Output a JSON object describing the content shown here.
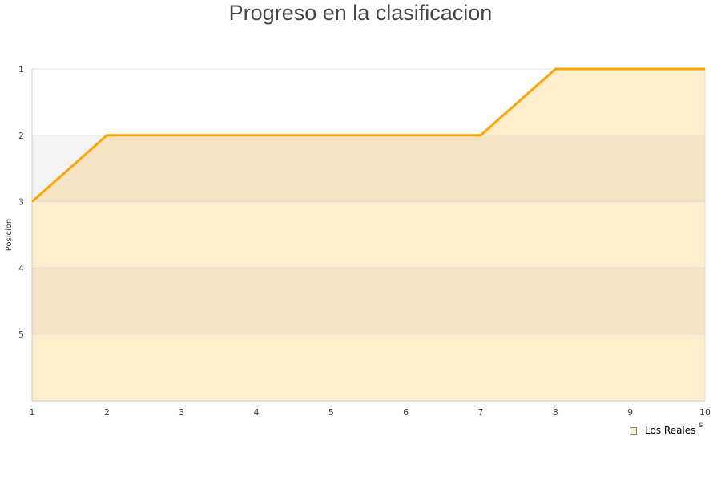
{
  "chart_data": {
    "type": "area",
    "title": "Progreso en la clasificacion",
    "ylabel": "Posicion",
    "xlabel_fragment": "s",
    "x": [
      1,
      2,
      3,
      4,
      5,
      6,
      7,
      8,
      9,
      10
    ],
    "series": [
      {
        "name": "Los Reales",
        "values": [
          3,
          2,
          2,
          2,
          2,
          2,
          2,
          1,
          1,
          1
        ]
      }
    ],
    "xlim": [
      1,
      10
    ],
    "ylim": [
      1,
      6
    ],
    "y_inverted": true,
    "y_ticks": [
      1,
      2,
      3,
      4,
      5
    ],
    "x_ticks": [
      1,
      2,
      3,
      4,
      5,
      6,
      7,
      8,
      9,
      10
    ],
    "legend": "bottom-right",
    "colors": {
      "line": "#ffa500",
      "fill": "#ffedcc",
      "fill_band": "#f7e4c4",
      "bg_band": "#f3f3f3",
      "grid": "#dddddd"
    }
  }
}
